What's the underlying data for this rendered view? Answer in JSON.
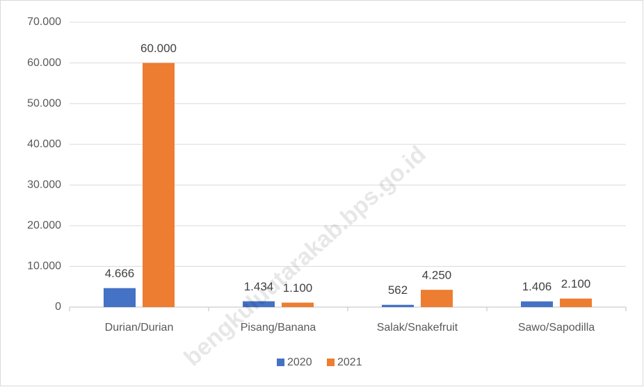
{
  "chart_data": {
    "type": "bar",
    "categories": [
      "Durian/Durian",
      "Pisang/Banana",
      "Salak/Snakefruit",
      "Sawo/Sapodilla"
    ],
    "series": [
      {
        "name": "2020",
        "color": "#4472c4",
        "values": [
          4666,
          1434,
          562,
          1406
        ],
        "value_labels": [
          "4.666",
          "1.434",
          "562",
          "1.406"
        ]
      },
      {
        "name": "2021",
        "color": "#ed7d31",
        "values": [
          60000,
          1100,
          4250,
          2100
        ],
        "value_labels": [
          "60.000",
          "1.100",
          "4.250",
          "2.100"
        ]
      }
    ],
    "ylim": [
      0,
      70000
    ],
    "yticks": [
      0,
      {
        "value": 10000,
        "label": "10.000"
      },
      {
        "value": 20000,
        "label": "20.000"
      },
      {
        "value": 30000,
        "label": "30.000"
      },
      {
        "value": 40000,
        "label": "40.000"
      },
      {
        "value": 50000,
        "label": "50.000"
      },
      {
        "value": 60000,
        "label": "60.000"
      },
      {
        "value": 70000,
        "label": "70.000"
      }
    ],
    "grid": true,
    "legend": "bottom",
    "watermark": "bengkuluutarakab.bps.go.id"
  }
}
